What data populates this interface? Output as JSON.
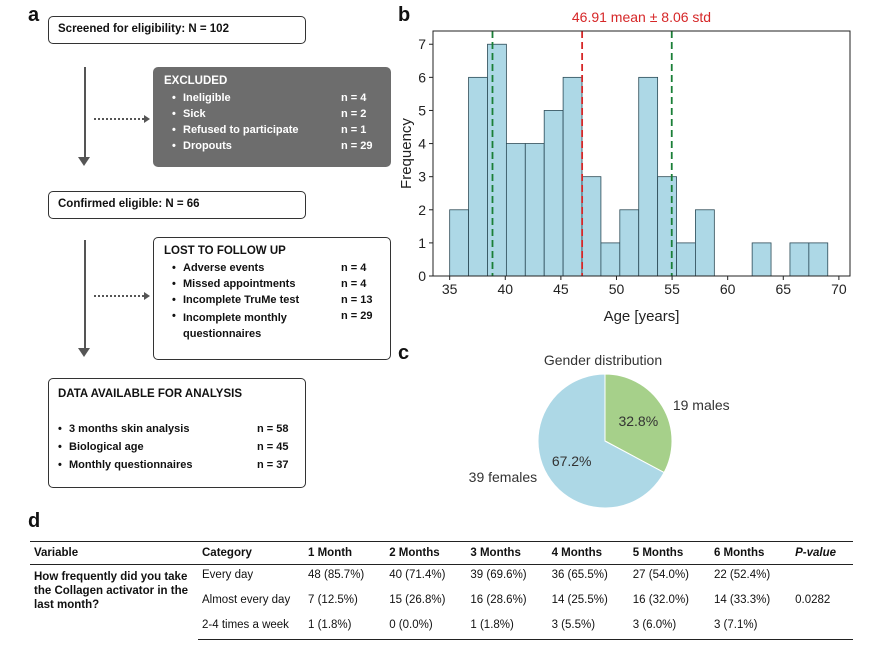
{
  "panels": {
    "a": "a",
    "b": "b",
    "c": "c",
    "d": "d"
  },
  "flow": {
    "screened": "Screened for eligibility: N = 102",
    "excluded": {
      "title": "EXCLUDED",
      "items": [
        {
          "label": "Ineligible",
          "value": "n = 4"
        },
        {
          "label": "Sick",
          "value": "n = 2"
        },
        {
          "label": "Refused to participate",
          "value": "n = 1"
        },
        {
          "label": "Dropouts",
          "value": "n = 29"
        }
      ]
    },
    "confirmed": "Confirmed eligible: N = 66",
    "lost": {
      "title": "LOST TO FOLLOW UP",
      "items": [
        {
          "label": "Adverse events",
          "value": "n = 4"
        },
        {
          "label": "Missed appointments",
          "value": "n = 4"
        },
        {
          "label": "Incomplete TruMe test",
          "value": "n = 13"
        },
        {
          "label": "Incomplete monthly questionnaires",
          "value": "n = 29"
        }
      ]
    },
    "analysis": {
      "title": "DATA AVAILABLE FOR ANALYSIS",
      "items": [
        {
          "label": "3 months skin analysis",
          "value": "n = 58"
        },
        {
          "label": "Biological age",
          "value": "n = 45"
        },
        {
          "label": "Monthly questionnaires",
          "value": "n = 37"
        }
      ]
    },
    "bullet": "•"
  },
  "chart_data": [
    {
      "type": "bar",
      "title": "46.91 mean ± 8.06 std",
      "xlabel": "Age [years]",
      "ylabel": "Frequency",
      "xlim": [
        33.5,
        71
      ],
      "ylim": [
        0,
        7.4
      ],
      "xticks": [
        35,
        40,
        45,
        50,
        55,
        60,
        65,
        70
      ],
      "yticks": [
        0,
        1,
        2,
        3,
        4,
        5,
        6,
        7
      ],
      "bin_width": 1.7,
      "bins": [
        {
          "x0": 35.0,
          "count": 2
        },
        {
          "x0": 36.7,
          "count": 6
        },
        {
          "x0": 38.4,
          "count": 7
        },
        {
          "x0": 40.1,
          "count": 4
        },
        {
          "x0": 41.8,
          "count": 4
        },
        {
          "x0": 43.5,
          "count": 5
        },
        {
          "x0": 45.2,
          "count": 6
        },
        {
          "x0": 46.9,
          "count": 3
        },
        {
          "x0": 48.6,
          "count": 1
        },
        {
          "x0": 50.3,
          "count": 2
        },
        {
          "x0": 52.0,
          "count": 6
        },
        {
          "x0": 53.7,
          "count": 3
        },
        {
          "x0": 55.4,
          "count": 1
        },
        {
          "x0": 57.1,
          "count": 2
        },
        {
          "x0": 62.2,
          "count": 1
        },
        {
          "x0": 65.6,
          "count": 1
        },
        {
          "x0": 67.3,
          "count": 1
        }
      ],
      "mean": 46.91,
      "std": 8.06,
      "mean_color": "#d62728",
      "std_color": "#1a7f37",
      "bar_color": "#add8e6"
    },
    {
      "type": "pie",
      "title": "Gender distribution",
      "slices": [
        {
          "label": "19 males",
          "value": 32.8,
          "pct_label": "32.8%",
          "color": "#a6d08a"
        },
        {
          "label": "39 females",
          "value": 67.2,
          "pct_label": "67.2%",
          "color": "#add8e6"
        }
      ]
    },
    {
      "type": "table",
      "headers": [
        "Variable",
        "Category",
        "1 Month",
        "2 Months",
        "3 Months",
        "4 Months",
        "5 Months",
        "6 Months",
        "P-value"
      ],
      "variable": "How frequently did you take the Collagen activator in the last month?",
      "p_value": "0.0282",
      "rows": [
        {
          "category": "Every day",
          "values": [
            "48 (85.7%)",
            "40 (71.4%)",
            "39 (69.6%)",
            "36 (65.5%)",
            "27 (54.0%)",
            "22 (52.4%)"
          ]
        },
        {
          "category": "Almost every day",
          "values": [
            "7 (12.5%)",
            "15 (26.8%)",
            "16 (28.6%)",
            "14 (25.5%)",
            "16 (32.0%)",
            "14 (33.3%)"
          ]
        },
        {
          "category": "2-4 times a week",
          "values": [
            "1 (1.8%)",
            "0 (0.0%)",
            "1 (1.8%)",
            "3 (5.5%)",
            "3 (6.0%)",
            "3 (7.1%)"
          ]
        }
      ]
    }
  ]
}
